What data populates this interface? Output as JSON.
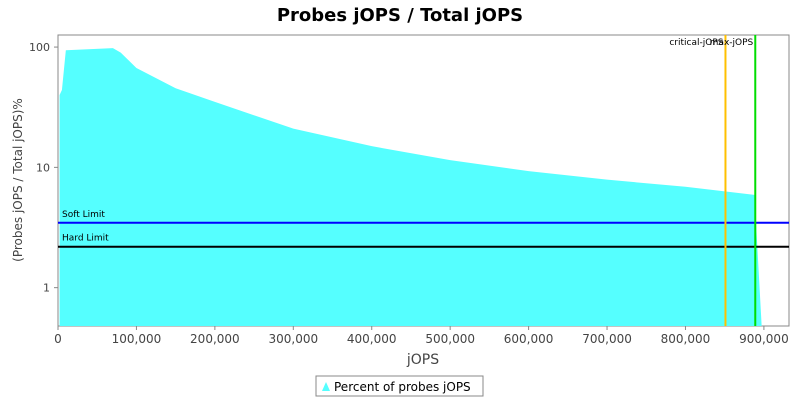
{
  "chart_data": {
    "type": "area",
    "title": "Probes jOPS / Total jOPS",
    "x_label": "jOPS",
    "y_label": "(Probes jOPS / Total jOPS)%",
    "log_y": true,
    "xlim": [
      0,
      932000
    ],
    "ylim": [
      0.48,
      126
    ],
    "xticks": [
      0,
      {
        "value": 100000,
        "label": "100,000"
      },
      {
        "value": 200000,
        "label": "200,000"
      },
      {
        "value": 300000,
        "label": "300,000"
      },
      {
        "value": 400000,
        "label": "400,000"
      },
      {
        "value": 500000,
        "label": "500,000"
      },
      {
        "value": 600000,
        "label": "600,000"
      },
      {
        "value": 700000,
        "label": "700,000"
      },
      {
        "value": 800000,
        "label": "800,000"
      },
      {
        "value": 900000,
        "label": "900,000"
      }
    ],
    "yticks": [
      1,
      10,
      100
    ],
    "series": [
      {
        "name": "Percent of probes jOPS",
        "color": "#55ffff",
        "x": [
          2000,
          5000,
          10000,
          70000,
          80000,
          100000,
          150000,
          200000,
          300000,
          400000,
          500000,
          600000,
          700000,
          800000,
          888000,
          897000
        ],
        "values": [
          40,
          44,
          94,
          98,
          90,
          67,
          45.5,
          35,
          21,
          15,
          11.5,
          9.3,
          7.9,
          6.9,
          5.9,
          0.5
        ]
      }
    ],
    "hlines": [
      {
        "label": "Soft Limit",
        "value": 3.46,
        "color": "#0000ff"
      },
      {
        "label": "Hard Limit",
        "value": 2.19,
        "color": "#000000"
      }
    ],
    "vlines": [
      {
        "label": "critical-jOPS",
        "value": 851000,
        "color": "#ffc000"
      },
      {
        "label": "max-jOPS",
        "value": 889000,
        "color": "#00dd00"
      }
    ]
  }
}
